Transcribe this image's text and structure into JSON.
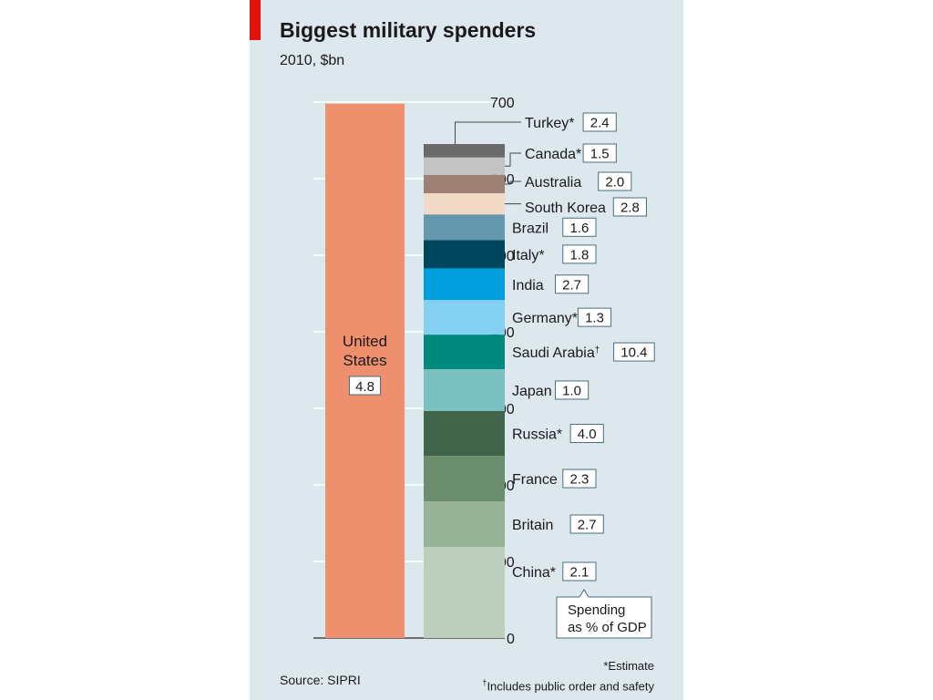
{
  "header": {
    "title": "Biggest military spenders",
    "subtitle": "2010, $bn"
  },
  "footer": {
    "source": "Source: SIPRI",
    "note_estimate": "*Estimate",
    "note_public_order": "Includes public order and safety",
    "dagger": "†"
  },
  "chart_data": {
    "type": "bar",
    "title": "Biggest military spenders",
    "subtitle": "2010, $bn",
    "ylim": [
      0,
      700
    ],
    "yticks": [
      0,
      100,
      200,
      300,
      400,
      500,
      600,
      700
    ],
    "grid": true,
    "colors": {
      "panel_bg": "#dde8ee",
      "united_states": "#ee8f6e",
      "connector": "#444444"
    },
    "us_bar": {
      "label_line1": "United",
      "label_line2": "States",
      "value": 698,
      "gdp_share": "4.8",
      "color": "#ee8f6e"
    },
    "stack_segments": [
      {
        "name": "China*",
        "value": 119,
        "gdp_share": "2.1",
        "color": "#bccfbd"
      },
      {
        "name": "Britain",
        "value": 59.6,
        "gdp_share": "2.7",
        "color": "#97b499"
      },
      {
        "name": "France",
        "value": 59.3,
        "gdp_share": "2.3",
        "color": "#6b8f6e"
      },
      {
        "name": "Russia*",
        "value": 58.7,
        "gdp_share": "4.0",
        "color": "#41654a"
      },
      {
        "name": "Japan",
        "value": 54.5,
        "gdp_share": "1.0",
        "color": "#7bc1c1"
      },
      {
        "name": "Saudi Arabia",
        "name_marker": "†",
        "value": 45.2,
        "gdp_share": "10.4",
        "color": "#008a7d"
      },
      {
        "name": "Germany*",
        "value": 45.2,
        "gdp_share": "1.3",
        "color": "#84d0f2"
      },
      {
        "name": "India",
        "value": 41.3,
        "gdp_share": "2.7",
        "color": "#009fdb"
      },
      {
        "name": "Italy*",
        "value": 37.0,
        "gdp_share": "1.8",
        "color": "#00465e"
      },
      {
        "name": "Brazil",
        "value": 33.5,
        "gdp_share": "1.6",
        "color": "#6698ad"
      },
      {
        "name": "South Korea",
        "value": 27.6,
        "gdp_share": "2.8",
        "color": "#f0dac5"
      },
      {
        "name": "Australia",
        "value": 24.0,
        "gdp_share": "2.0",
        "color": "#9e8075"
      },
      {
        "name": "Canada*",
        "value": 22.8,
        "gdp_share": "1.5",
        "color": "#c3c3c3"
      },
      {
        "name": "Turkey*",
        "value": 17.5,
        "gdp_share": "2.4",
        "color": "#6a6a6a"
      }
    ],
    "callout_line1": "Spending",
    "callout_line2": "as % of GDP"
  }
}
